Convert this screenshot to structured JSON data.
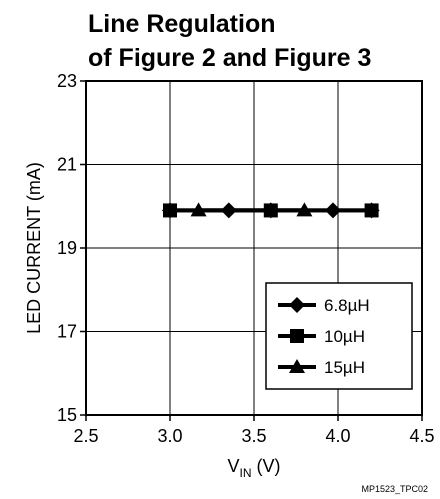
{
  "chart_data": {
    "type": "line",
    "title_line1": "Line Regulation",
    "title_line2": "of Figure 2 and Figure 3",
    "xlabel_main": "V",
    "xlabel_sub": "IN",
    "xlabel_unit": " (V)",
    "ylabel": "LED CURRENT (mA)",
    "xlim": [
      2.5,
      4.5
    ],
    "ylim": [
      15,
      23
    ],
    "x_ticks": [
      "2.5",
      "3.0",
      "3.5",
      "4.0",
      "4.5"
    ],
    "y_ticks": [
      "15",
      "17",
      "19",
      "21",
      "23"
    ],
    "grid": true,
    "legend_position": "lower-right",
    "series": [
      {
        "name": "6.8µH",
        "marker": "diamond",
        "x": [
          3.0,
          3.35,
          3.6,
          3.97,
          4.2
        ],
        "y": [
          19.9,
          19.9,
          19.9,
          19.9,
          19.9
        ]
      },
      {
        "name": "10µH",
        "marker": "square",
        "x": [
          3.0,
          3.6,
          4.2
        ],
        "y": [
          19.9,
          19.9,
          19.9
        ]
      },
      {
        "name": "15µH",
        "marker": "triangle",
        "x": [
          3.17,
          3.8
        ],
        "y": [
          19.9,
          19.9
        ]
      }
    ],
    "footnote": "MP1523_TPC02"
  }
}
